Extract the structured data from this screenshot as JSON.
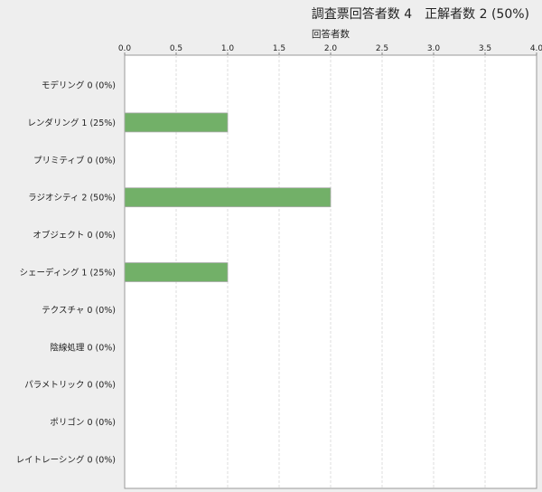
{
  "header": {
    "title": "調査票回答者数 4　正解者数 2 (50%)"
  },
  "chart_data": {
    "type": "bar",
    "orientation": "horizontal",
    "xlabel": "回答者数",
    "xlim": [
      0,
      4
    ],
    "x_ticks": [
      "0.0",
      "0.5",
      "1.0",
      "1.5",
      "2.0",
      "2.5",
      "3.0",
      "3.5",
      "4.0"
    ],
    "axis_position": "top",
    "grid": true,
    "categories": [
      "モデリング",
      "レンダリング",
      "プリミティブ",
      "ラジオシティ",
      "オブジェクト",
      "シェーディング",
      "テクスチャ",
      "陰線処理",
      "パラメトリック",
      "ポリゴン",
      "レイトレーシング"
    ],
    "category_labels": [
      "モデリング 0 (0%)",
      "レンダリング 1 (25%)",
      "プリミティブ 0 (0%)",
      "ラジオシティ 2 (50%)",
      "オブジェクト 0 (0%)",
      "シェーディング 1 (25%)",
      "テクスチャ 0 (0%)",
      "陰線処理 0 (0%)",
      "パラメトリック 0 (0%)",
      "ポリゴン 0 (0%)",
      "レイトレーシング 0 (0%)"
    ],
    "values": [
      0,
      1,
      0,
      2,
      0,
      1,
      0,
      0,
      0,
      0,
      0
    ],
    "bar_color": "#72b068"
  }
}
